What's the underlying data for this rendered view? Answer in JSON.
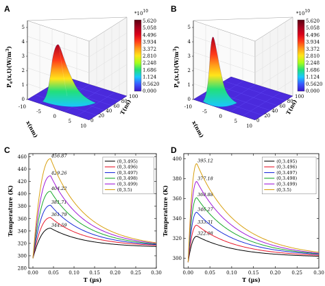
{
  "panels": {
    "A": "A",
    "B": "B",
    "C": "C",
    "D": "D"
  },
  "surface_a": {
    "colorbar_scale": "*10",
    "colorbar_exp": "10",
    "colorbar_ticks": [
      "5.620",
      "5.058",
      "4.496",
      "3.934",
      "3.372",
      "2.810",
      "2.248",
      "1.686",
      "1.124",
      "0.5620",
      "0.000"
    ],
    "zlabel": "P",
    "zlabel_sub": "e",
    "zlabel_rest": "(x,t)(W/m",
    "zlabel_sup": "3",
    "zlabel_end": ")",
    "z_ticks": [
      "0",
      "1",
      "2",
      "3",
      "4",
      "5"
    ],
    "x_ticks": [
      "-10",
      "-5",
      "0",
      "5",
      "10"
    ],
    "xlabel": "x(nm)",
    "t_ticks": [
      "0",
      "20",
      "40",
      "60",
      "80",
      "100"
    ],
    "tlabel": "T(ns)",
    "colors": [
      "#5a0010",
      "#a0001e",
      "#d8001a",
      "#ff3a1a",
      "#ff9a1a",
      "#ffe51a",
      "#a8ff1a",
      "#22e07a",
      "#19c8ff",
      "#3a58ff",
      "#3a14c8"
    ]
  },
  "surface_b": {
    "colorbar_scale": "*10",
    "colorbar_exp": "10",
    "colorbar_ticks": [
      "5.620",
      "5.058",
      "4.496",
      "3.934",
      "3.372",
      "2.810",
      "2.248",
      "1.686",
      "1.124",
      "0.5620",
      "0.000"
    ],
    "zlabel": "P",
    "zlabel_sub": "e",
    "zlabel_rest": "(x,t)(W/m",
    "zlabel_sup": "3",
    "zlabel_end": ")",
    "z_ticks": [
      "0",
      "1",
      "2",
      "3",
      "4",
      "5"
    ],
    "x_ticks": [
      "-10",
      "-5",
      "0",
      "5",
      "10"
    ],
    "xlabel": "x(nm)",
    "t_ticks": [
      "0",
      "20",
      "40",
      "60",
      "80",
      "100"
    ],
    "tlabel": "T(ns)"
  },
  "chart_data": [
    {
      "type": "line",
      "panel": "C",
      "xlabel": "T (µs)",
      "ylabel": "Temperature (K)",
      "xlim": [
        -0.01,
        0.3
      ],
      "ylim": [
        280,
        465
      ],
      "x_ticks": [
        "0.00",
        "0.05",
        "0.10",
        "0.15",
        "0.20",
        "0.25",
        "0.30"
      ],
      "y_ticks": [
        "280",
        "300",
        "320",
        "340",
        "360",
        "380",
        "400",
        "420",
        "440",
        "460"
      ],
      "legend_position": "top-right",
      "series": [
        {
          "name": "(0,3.495)",
          "color": "#000000",
          "peak": 344.59,
          "final": 315,
          "peak_label": "344.59"
        },
        {
          "name": "(0,3.496)",
          "color": "#e8192c",
          "peak": 361.79,
          "final": 317,
          "peak_label": "361.79"
        },
        {
          "name": "(0,3.497)",
          "color": "#1a2bd8",
          "peak": 381.71,
          "final": 318,
          "peak_label": "381.71"
        },
        {
          "name": "(0,3.498)",
          "color": "#18a82a",
          "peak": 404.22,
          "final": 319,
          "peak_label": "404.22"
        },
        {
          "name": "(0,3.499)",
          "color": "#a01ad8",
          "peak": 429.26,
          "final": 320,
          "peak_label": "429.26"
        },
        {
          "name": "(0,3.5)",
          "color": "#d8a010",
          "peak": 456.87,
          "final": 321,
          "peak_label": "456.87"
        }
      ],
      "baseline": 296,
      "peak_time": 0.043
    },
    {
      "type": "line",
      "panel": "D",
      "xlabel": "T (µs)",
      "ylabel": "Temperature (K)",
      "xlim": [
        -0.01,
        0.3
      ],
      "ylim": [
        290,
        405
      ],
      "x_ticks": [
        "0.00",
        "0.05",
        "0.10",
        "0.15",
        "0.20",
        "0.25",
        "0.30"
      ],
      "y_ticks": [
        "300",
        "320",
        "340",
        "360",
        "380",
        "400"
      ],
      "legend_position": "top-right",
      "series": [
        {
          "name": "(0,3.495)",
          "color": "#000000",
          "peak": 322.08,
          "final": 302,
          "peak_label": "322.08"
        },
        {
          "name": "(0,3.496)",
          "color": "#e8192c",
          "peak": 333.31,
          "final": 303,
          "peak_label": "333.31"
        },
        {
          "name": "(0,3.497)",
          "color": "#1a2bd8",
          "peak": 346.27,
          "final": 304,
          "peak_label": "346.27"
        },
        {
          "name": "(0,3.498)",
          "color": "#18a82a",
          "peak": 360.88,
          "final": 304.5,
          "peak_label": "360.88"
        },
        {
          "name": "(0,3.499)",
          "color": "#a01ad8",
          "peak": 377.18,
          "final": 305,
          "peak_label": "377.18"
        },
        {
          "name": "(0,3.5)",
          "color": "#d8a010",
          "peak": 395.12,
          "final": 306,
          "peak_label": "395.12"
        }
      ],
      "baseline": 296,
      "peak_time": 0.02
    }
  ]
}
